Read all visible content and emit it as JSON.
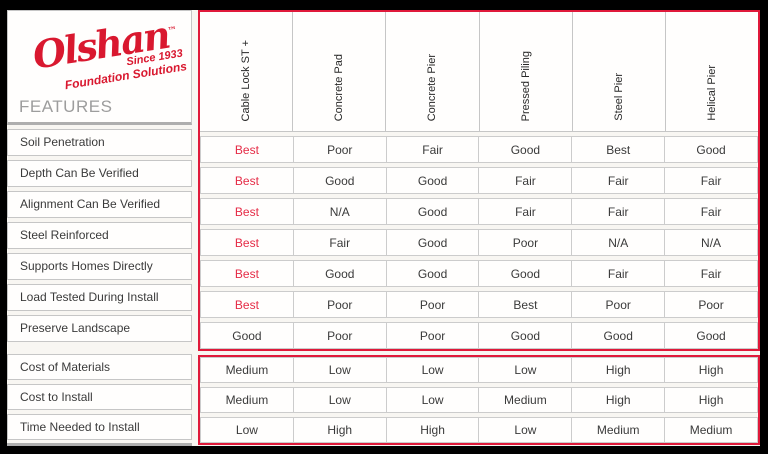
{
  "brand": {
    "logo_text": "Olshan",
    "trademark": "™",
    "tagline_line1": "Since 1933",
    "tagline_line2": "Foundation Solutions"
  },
  "table": {
    "features_header": "FEATURES",
    "columns": [
      "Cable Lock ST +",
      "Concrete Pad",
      "Concrete Pier",
      "Pressed Piling",
      "Steel Pier",
      "Helical Pier"
    ],
    "highlight": {
      "column": 0,
      "value": "Best"
    },
    "feature_rows": [
      {
        "label": "Soil Penetration",
        "values": [
          "Best",
          "Poor",
          "Fair",
          "Good",
          "Best",
          "Good"
        ]
      },
      {
        "label": "Depth Can Be Verified",
        "values": [
          "Best",
          "Good",
          "Good",
          "Fair",
          "Fair",
          "Fair"
        ]
      },
      {
        "label": "Alignment Can Be Verified",
        "values": [
          "Best",
          "N/A",
          "Good",
          "Fair",
          "Fair",
          "Fair"
        ]
      },
      {
        "label": "Steel Reinforced",
        "values": [
          "Best",
          "Fair",
          "Good",
          "Poor",
          "N/A",
          "N/A"
        ]
      },
      {
        "label": "Supports Homes Directly",
        "values": [
          "Best",
          "Good",
          "Good",
          "Good",
          "Fair",
          "Fair"
        ]
      },
      {
        "label": "Load Tested During Install",
        "values": [
          "Best",
          "Poor",
          "Poor",
          "Best",
          "Poor",
          "Poor"
        ]
      },
      {
        "label": "Preserve Landscape",
        "values": [
          "Good",
          "Poor",
          "Poor",
          "Good",
          "Good",
          "Good"
        ]
      }
    ],
    "cost_rows": [
      {
        "label": "Cost of Materials",
        "values": [
          "Medium",
          "Low",
          "Low",
          "Low",
          "High",
          "High"
        ]
      },
      {
        "label": "Cost to Install",
        "values": [
          "Medium",
          "Low",
          "Low",
          "Medium",
          "High",
          "High"
        ]
      },
      {
        "label": "Time Needed to Install",
        "values": [
          "Low",
          "High",
          "High",
          "Low",
          "Medium",
          "Medium"
        ]
      }
    ]
  },
  "colors": {
    "brand_red": "#d9182f",
    "frame_red": "#e0193a",
    "best_red": "#e52b46",
    "border_gray": "#c6c6c6",
    "thick_gray": "#aeaeae",
    "features_gray": "#9d9d9d",
    "text_dark": "#3a3a3a",
    "card_bg": "#f8f6f2",
    "page_bg": "#000000"
  },
  "chart_data": {
    "type": "table",
    "title": "Olshan Foundation Solutions — Features Comparison",
    "row_header": "FEATURES",
    "columns": [
      "Cable Lock ST +",
      "Concrete Pad",
      "Concrete Pier",
      "Pressed Piling",
      "Steel Pier",
      "Helical Pier"
    ],
    "rows": [
      {
        "feature": "Soil Penetration",
        "values": [
          "Best",
          "Poor",
          "Fair",
          "Good",
          "Best",
          "Good"
        ]
      },
      {
        "feature": "Depth Can Be Verified",
        "values": [
          "Best",
          "Good",
          "Good",
          "Fair",
          "Fair",
          "Fair"
        ]
      },
      {
        "feature": "Alignment Can Be Verified",
        "values": [
          "Best",
          "N/A",
          "Good",
          "Fair",
          "Fair",
          "Fair"
        ]
      },
      {
        "feature": "Steel Reinforced",
        "values": [
          "Best",
          "Fair",
          "Good",
          "Poor",
          "N/A",
          "N/A"
        ]
      },
      {
        "feature": "Supports Homes Directly",
        "values": [
          "Best",
          "Good",
          "Good",
          "Good",
          "Fair",
          "Fair"
        ]
      },
      {
        "feature": "Load Tested During Install",
        "values": [
          "Best",
          "Poor",
          "Poor",
          "Best",
          "Poor",
          "Poor"
        ]
      },
      {
        "feature": "Preserve Landscape",
        "values": [
          "Good",
          "Poor",
          "Poor",
          "Good",
          "Good",
          "Good"
        ]
      },
      {
        "feature": "Cost of Materials",
        "values": [
          "Medium",
          "Low",
          "Low",
          "Low",
          "High",
          "High"
        ]
      },
      {
        "feature": "Cost to Install",
        "values": [
          "Medium",
          "Low",
          "Low",
          "Medium",
          "High",
          "High"
        ]
      },
      {
        "feature": "Time Needed to Install",
        "values": [
          "Low",
          "High",
          "High",
          "Low",
          "Medium",
          "Medium"
        ]
      }
    ],
    "notes": "Cable Lock ST + column 'Best' values rendered in red; cost rows grouped in a separate red-framed section"
  }
}
